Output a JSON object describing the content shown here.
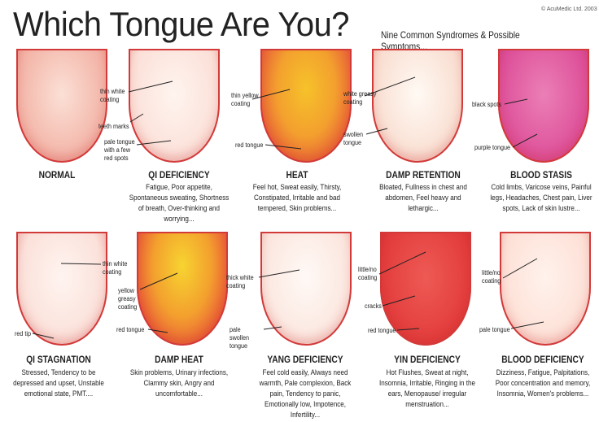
{
  "header": {
    "title": "Which Tongue Are You?",
    "subtitle": "Nine Common Syndromes & Possible Symptoms...",
    "copyright": "© AcuMedic Ltd. 2003"
  },
  "tongues": [
    {
      "name": "NORMAL",
      "symptoms": "",
      "labels": []
    },
    {
      "name": "QI DEFICIENCY",
      "symptoms": "Fatigue, Poor appetite, Spontaneous sweating, Shortness of breath, Over-thinking and worrying...",
      "labels": [
        "thin white coating",
        "teeth marks",
        "pale tongue with a few red spots"
      ]
    },
    {
      "name": "HEAT",
      "symptoms": "Feel hot, Sweat easily, Thirsty, Constipated, Irritable and bad tempered, Skin problems...",
      "labels": [
        "thin yellow coating",
        "red tongue"
      ]
    },
    {
      "name": "DAMP RETENTION",
      "symptoms": "Bloated, Fullness in chest and abdomen, Feel heavy and lethargic...",
      "labels": [
        "white greasy coating",
        "swollen tongue"
      ]
    },
    {
      "name": "BLOOD STASIS",
      "symptoms": "Cold limbs, Varicose veins, Painful legs, Headaches, Chest pain, Liver spots, Lack of skin lustre...",
      "labels": [
        "black spots",
        "purple tongue"
      ]
    },
    {
      "name": "QI STAGNATION",
      "symptoms": "Stressed, Tendency to be depressed and upset, Unstable emotional state, PMT....",
      "labels": [
        "thin white coating",
        "red tip"
      ]
    },
    {
      "name": "DAMP HEAT",
      "symptoms": "Skin problems, Urinary infections, Clammy skin, Angry and uncomfortable...",
      "labels": [
        "yellow greasy coating",
        "red tongue"
      ]
    },
    {
      "name": "YANG DEFICIENCY",
      "symptoms": "Feel cold easily, Always need warmth, Pale complexion, Back pain, Tendency to panic, Emotionally low, Impotence, Infertility...",
      "labels": [
        "thick white coating",
        "pale swollen tongue"
      ]
    },
    {
      "name": "YIN DEFICIENCY",
      "symptoms": "Hot Flushes, Sweat at night, Insomnia, Irritable, Ringing in the ears, Menopause/ irregular menstruation...",
      "labels": [
        "little/no coating",
        "cracks",
        "red tongue"
      ]
    },
    {
      "name": "BLOOD DEFICIENCY",
      "symptoms": "Dizziness, Fatigue, Palpitations, Poor concentration and memory, Insomnia, Women's problems...",
      "labels": [
        "little/no coating",
        "pale tongue"
      ]
    }
  ],
  "colors": {
    "outline": "#d23a3a",
    "text": "#222222"
  }
}
